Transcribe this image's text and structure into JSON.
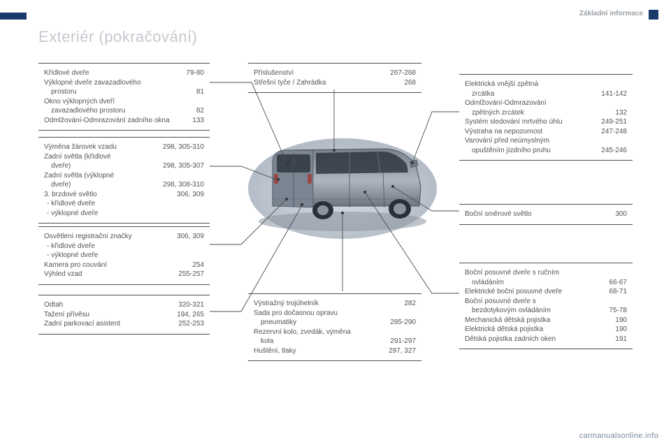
{
  "header": {
    "section": "Základní informace"
  },
  "title": "Exteriér (pokračování)",
  "footer": "carmanualsonline.info",
  "colors": {
    "accent": "#1a3a6a",
    "text": "#535353",
    "titleGray": "#c5c8ce",
    "ruleGray": "#4d4d4d"
  },
  "boxes": {
    "b1": [
      {
        "l": "Křídlové dveře",
        "r": "79-80"
      },
      {
        "l": "Výklopné dveře zavazadlového",
        "r": ""
      },
      {
        "l": "prostoru",
        "r": "81",
        "indent": true
      },
      {
        "l": "Okno výklopných dveří",
        "r": ""
      },
      {
        "l": "zavazadlového prostoru",
        "r": "82",
        "indent": true
      },
      {
        "l": "Odmlžování-Odmrazování zadního okna",
        "r": "133"
      }
    ],
    "b2": [
      {
        "l": "Výměna žárovek vzadu",
        "r": "298, 305-310"
      },
      {
        "l": "Zadní světla (křídlové",
        "r": ""
      },
      {
        "l": "dveře)",
        "r": "298, 305-307",
        "indent": true
      },
      {
        "l": "Zadní světla (výklopné",
        "r": ""
      },
      {
        "l": "dveře)",
        "r": "298, 308-310",
        "indent": true
      },
      {
        "l": "3. brzdové světlo",
        "r": "306, 309"
      },
      {
        "l": "křídlové dveře",
        "dash": true
      },
      {
        "l": "výklopné dveře",
        "dash": true
      }
    ],
    "b3": [
      {
        "l": "Osvětlení registrační značky",
        "r": "306, 309"
      },
      {
        "l": "křídlové dveře",
        "dash": true
      },
      {
        "l": "výklopné dveře",
        "dash": true
      },
      {
        "l": "Kamera pro couvání",
        "r": "254"
      },
      {
        "l": "Výhled vzad",
        "r": "255-257"
      }
    ],
    "b4": [
      {
        "l": "Odtah",
        "r": "320-321"
      },
      {
        "l": "Tažení přívěsu",
        "r": "194, 265"
      },
      {
        "l": "Zadní parkovací asistent",
        "r": "252-253"
      }
    ],
    "b5": [
      {
        "l": "Příslušenství",
        "r": "267-268"
      },
      {
        "l": "Střešní tyče / Zahrádka",
        "r": "268"
      }
    ],
    "b6": [
      {
        "l": "Výstražný trojúhelník",
        "r": "282"
      },
      {
        "l": "Sada pro dočasnou opravu",
        "r": ""
      },
      {
        "l": "pneumatiky",
        "r": "285-290",
        "indent": true
      },
      {
        "l": "Rezervní kolo, zvedák, výměna",
        "r": ""
      },
      {
        "l": "kola",
        "r": "291-297",
        "indent": true
      },
      {
        "l": "Huštění, tlaky",
        "r": "297, 327"
      }
    ],
    "b7": [
      {
        "l": "Elektrická vnější zpětná",
        "r": ""
      },
      {
        "l": "zrcátka",
        "r": "141-142",
        "indent": true
      },
      {
        "l": "Odmlžování-Odmrazování",
        "r": ""
      },
      {
        "l": "zpětných zrcátek",
        "r": "132",
        "indent": true
      },
      {
        "l": "Systém sledování mrtvého úhlu",
        "r": "249-251"
      },
      {
        "l": "Výstraha na nepozornost",
        "r": "247-248"
      },
      {
        "l": "Varování před neúmyslným",
        "r": ""
      },
      {
        "l": "opuštěním jízdního pruhu",
        "r": "245-246",
        "indent": true
      }
    ],
    "b8": [
      {
        "l": "Boční směrové světlo",
        "r": "300"
      }
    ],
    "b9": [
      {
        "l": "Boční posuvné dveře s ručním",
        "r": ""
      },
      {
        "l": "ovládáním",
        "r": "66-67",
        "indent": true
      },
      {
        "l": "Elektrické boční posuvné dveře",
        "r": "68-71"
      },
      {
        "l": "Boční posuvné dveře s",
        "r": ""
      },
      {
        "l": "bezdotykovým ovládáním",
        "r": "75-78",
        "indent": true
      },
      {
        "l": "Mechanická dětská pojistka",
        "r": "190"
      },
      {
        "l": "Elektrická dětská pojistka",
        "r": "190"
      },
      {
        "l": "Dětská pojistka zadních oken",
        "r": "191"
      }
    ]
  }
}
